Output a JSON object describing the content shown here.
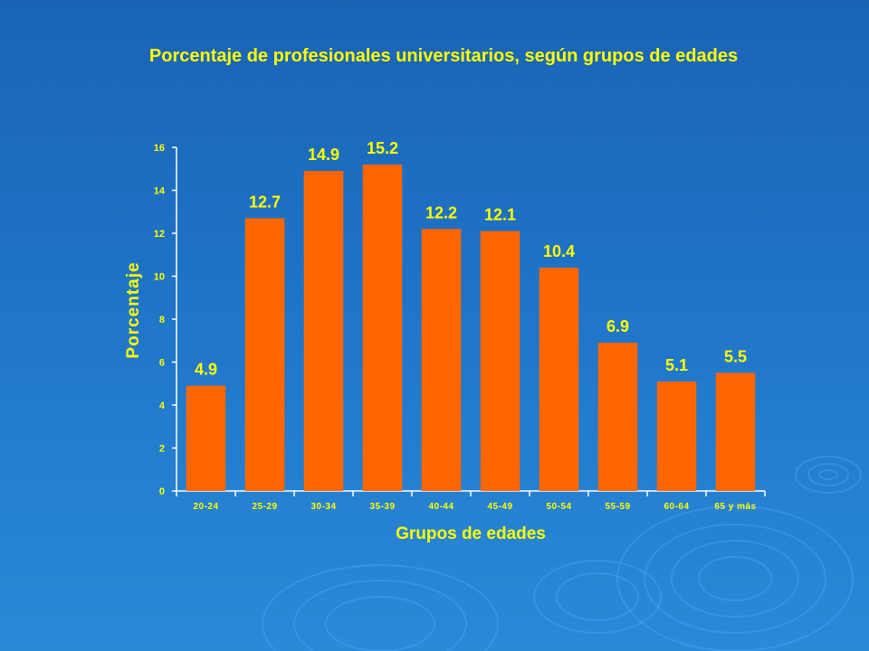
{
  "chart_data": {
    "type": "bar",
    "title": "Porcentaje de profesionales universitarios, según grupos de edades",
    "xlabel": "Grupos de edades",
    "ylabel": "Porcentaje",
    "categories": [
      "20-24",
      "25-29",
      "30-34",
      "35-39",
      "40-44",
      "45-49",
      "50-54",
      "55-59",
      "60-64",
      "65 y más"
    ],
    "values": [
      4.9,
      12.7,
      14.9,
      15.2,
      12.2,
      12.1,
      10.4,
      6.9,
      5.1,
      5.5
    ],
    "data_labels": [
      "4.9",
      "12.7",
      "14.9",
      "15.2",
      "12.2",
      "12.1",
      "10.4",
      "6.9",
      "5.1",
      "5.5"
    ],
    "yticks": [
      "0",
      "2",
      "4",
      "6",
      "8",
      "10",
      "12",
      "14",
      "16"
    ],
    "ylim": [
      0,
      16
    ],
    "grid": false,
    "legend": "none",
    "colors": {
      "bar": "#ff6600",
      "text": "#ffff00",
      "axis": "#ffffff"
    }
  }
}
